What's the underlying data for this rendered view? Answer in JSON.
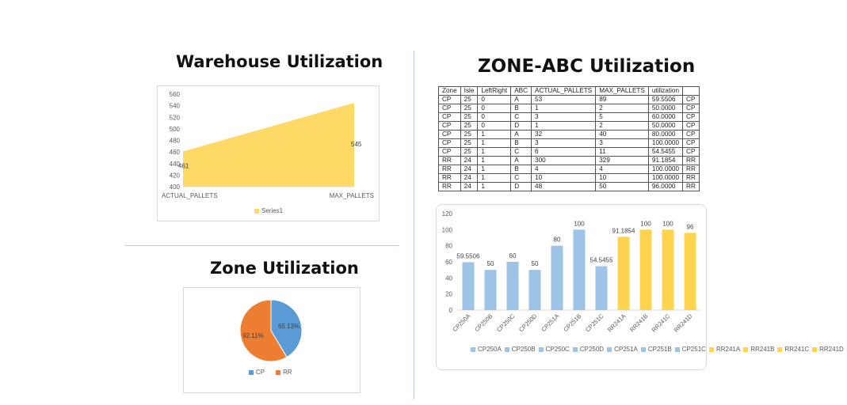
{
  "titles": {
    "warehouse": "Warehouse Utilization",
    "zone": "Zone Utilization",
    "abc": "ZONE-ABC Utilization"
  },
  "table": {
    "headers": [
      "Zone",
      "Isle",
      "LeftRight",
      "ABC",
      "ACTUAL_PALLETS",
      "MAX_PALLETS",
      "utilization",
      ""
    ],
    "rows": [
      [
        "CP",
        "25",
        "0",
        "A",
        "53",
        "89",
        "59.5506",
        "CP"
      ],
      [
        "CP",
        "25",
        "0",
        "B",
        "1",
        "2",
        "50.0000",
        "CP"
      ],
      [
        "CP",
        "25",
        "0",
        "C",
        "3",
        "5",
        "60.0000",
        "CP"
      ],
      [
        "CP",
        "25",
        "0",
        "D",
        "1",
        "2",
        "50.0000",
        "CP"
      ],
      [
        "CP",
        "25",
        "1",
        "A",
        "32",
        "40",
        "80.0000",
        "CP"
      ],
      [
        "CP",
        "25",
        "1",
        "B",
        "3",
        "3",
        "100.0000",
        "CP"
      ],
      [
        "CP",
        "25",
        "1",
        "C",
        "6",
        "11",
        "54.5455",
        "CP"
      ],
      [
        "RR",
        "24",
        "1",
        "A",
        "300",
        "329",
        "91.1854",
        "RR"
      ],
      [
        "RR",
        "24",
        "1",
        "B",
        "4",
        "4",
        "100.0000",
        "RR"
      ],
      [
        "RR",
        "24",
        "1",
        "C",
        "10",
        "10",
        "100.0000",
        "RR"
      ],
      [
        "RR",
        "24",
        "1",
        "D",
        "48",
        "50",
        "96.0000",
        "RR"
      ]
    ]
  },
  "chart_data": [
    {
      "type": "area",
      "title": "Warehouse Utilization",
      "categories": [
        "ACTUAL_PALLETS",
        "MAX_PALLETS"
      ],
      "series": [
        {
          "name": "Series1",
          "values": [
            461,
            545
          ],
          "color": "#ffd966"
        }
      ],
      "ylim": [
        400,
        560
      ],
      "yticks": [
        400,
        420,
        440,
        460,
        480,
        500,
        520,
        540,
        560
      ],
      "data_labels": [
        "461",
        "545"
      ],
      "grid": false,
      "legend": "bottom"
    },
    {
      "type": "pie",
      "title": "Zone Utilization",
      "slices": [
        {
          "name": "CP",
          "value": 65.13,
          "label": "65.13%",
          "color": "#5b9bd5"
        },
        {
          "name": "RR",
          "value": 92.11,
          "label": "92.11%",
          "color": "#ed7d31"
        }
      ],
      "legend": "bottom"
    },
    {
      "type": "bar",
      "title": "ZONE-ABC Utilization",
      "categories": [
        "CP250A",
        "CP250B",
        "CP250C",
        "CP250D",
        "CP251A",
        "CP251B",
        "CP251C",
        "RR241A",
        "RR241B",
        "RR241C",
        "RR241D"
      ],
      "values": [
        59.5506,
        50,
        60,
        50,
        80,
        100,
        54.5455,
        91.1854,
        100,
        100,
        96
      ],
      "data_labels": [
        "59.5506",
        "50",
        "60",
        "50",
        "80",
        "100",
        "54.5455",
        "91.1854",
        "100",
        "100",
        "96"
      ],
      "colors": [
        "#9dc3e6",
        "#9dc3e6",
        "#9dc3e6",
        "#9dc3e6",
        "#9dc3e6",
        "#9dc3e6",
        "#9dc3e6",
        "#ffd34d",
        "#ffd34d",
        "#ffd34d",
        "#ffd34d"
      ],
      "ylim": [
        0,
        120
      ],
      "yticks": [
        0,
        20,
        40,
        60,
        80,
        100,
        120
      ],
      "grid": false,
      "legend": "bottom"
    }
  ]
}
